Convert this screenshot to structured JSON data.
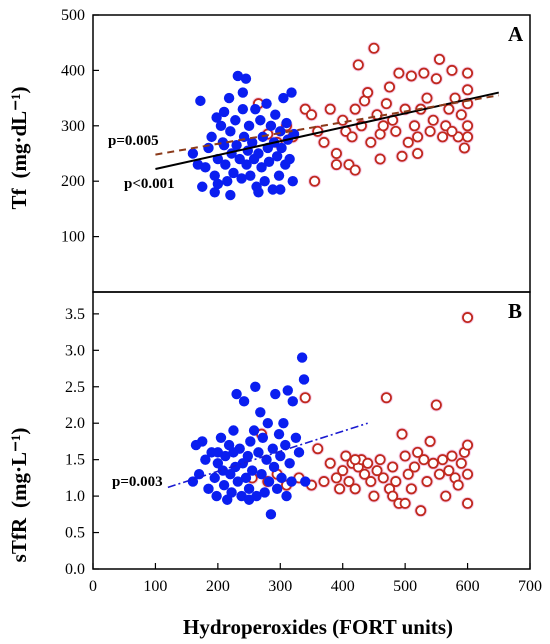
{
  "figure": {
    "xlabel": "Hydroperoxides (FORT units)",
    "xticks": [
      "0",
      "100",
      "200",
      "300",
      "400",
      "500",
      "600",
      "700"
    ]
  },
  "colors": {
    "blue_group": "#0a1ef0",
    "red_group": "#c0281e",
    "red_halo": "#f3c6e6",
    "black_line": "#000000",
    "dashed_line": "#8b3a1a",
    "dashdot_line": "#1a1ad0"
  },
  "chart_data": [
    {
      "type": "scatter",
      "panel_label": "A",
      "ylabel_main": "Tf",
      "ylabel_unit": "(mg·dL⁻¹)",
      "xlim": [
        0,
        700
      ],
      "ylim": [
        0,
        500
      ],
      "yticks": [
        "100",
        "200",
        "300",
        "400",
        "500"
      ],
      "grid": false,
      "annotations": [
        "p=0.005",
        "p<0.001"
      ],
      "regression_lines": [
        {
          "style": "solid",
          "color": "black",
          "x": [
            100,
            650
          ],
          "y": [
            222,
            360
          ]
        },
        {
          "style": "dashed",
          "color": "dark-red",
          "x": [
            100,
            650
          ],
          "y": [
            248,
            355
          ]
        }
      ],
      "series": [
        {
          "marker": "filled-circle",
          "color": "blue",
          "points": [
            [
              160,
              250
            ],
            [
              168,
              230
            ],
            [
              172,
              345
            ],
            [
              175,
              190
            ],
            [
              180,
              225
            ],
            [
              185,
              260
            ],
            [
              190,
              280
            ],
            [
              195,
              210
            ],
            [
              198,
              315
            ],
            [
              200,
              240
            ],
            [
              200,
              195
            ],
            [
              205,
              300
            ],
            [
              208,
              270
            ],
            [
              210,
              325
            ],
            [
              212,
              230
            ],
            [
              215,
              200
            ],
            [
              218,
              350
            ],
            [
              220,
              290
            ],
            [
              222,
              250
            ],
            [
              225,
              215
            ],
            [
              228,
              310
            ],
            [
              230,
              265
            ],
            [
              232,
              390
            ],
            [
              235,
              240
            ],
            [
              238,
              205
            ],
            [
              240,
              330
            ],
            [
              242,
              280
            ],
            [
              245,
              385
            ],
            [
              246,
              230
            ],
            [
              248,
              255
            ],
            [
              250,
              300
            ],
            [
              252,
              210
            ],
            [
              255,
              270
            ],
            [
              258,
              240
            ],
            [
              260,
              330
            ],
            [
              262,
              190
            ],
            [
              265,
              250
            ],
            [
              268,
              310
            ],
            [
              270,
              225
            ],
            [
              272,
              280
            ],
            [
              275,
              200
            ],
            [
              278,
              340
            ],
            [
              280,
              260
            ],
            [
              282,
              235
            ],
            [
              285,
              300
            ],
            [
              288,
              185
            ],
            [
              290,
              270
            ],
            [
              292,
              320
            ],
            [
              295,
              245
            ],
            [
              298,
              210
            ],
            [
              300,
              290
            ],
            [
              302,
              260
            ],
            [
              305,
              350
            ],
            [
              308,
              230
            ],
            [
              310,
              305
            ],
            [
              312,
              275
            ],
            [
              315,
              240
            ],
            [
              318,
              360
            ],
            [
              320,
              200
            ],
            [
              322,
              285
            ],
            [
              220,
              175
            ],
            [
              195,
              180
            ],
            [
              265,
              180
            ],
            [
              240,
              360
            ],
            [
              210,
              265
            ],
            [
              300,
              185
            ]
          ]
        },
        {
          "marker": "open-circle",
          "color": "red",
          "points": [
            [
              265,
              340
            ],
            [
              280,
              285
            ],
            [
              295,
              270
            ],
            [
              310,
              300
            ],
            [
              320,
              280
            ],
            [
              340,
              330
            ],
            [
              350,
              320
            ],
            [
              355,
              200
            ],
            [
              360,
              290
            ],
            [
              370,
              270
            ],
            [
              380,
              330
            ],
            [
              390,
              250
            ],
            [
              400,
              310
            ],
            [
              405,
              290
            ],
            [
              410,
              230
            ],
            [
              415,
              280
            ],
            [
              420,
              330
            ],
            [
              425,
              410
            ],
            [
              430,
              300
            ],
            [
              435,
              345
            ],
            [
              440,
              360
            ],
            [
              445,
              270
            ],
            [
              450,
              440
            ],
            [
              455,
              320
            ],
            [
              460,
              285
            ],
            [
              465,
              300
            ],
            [
              470,
              340
            ],
            [
              475,
              370
            ],
            [
              480,
              310
            ],
            [
              485,
              290
            ],
            [
              490,
              395
            ],
            [
              495,
              245
            ],
            [
              500,
              330
            ],
            [
              505,
              270
            ],
            [
              510,
              390
            ],
            [
              515,
              300
            ],
            [
              520,
              280
            ],
            [
              525,
              330
            ],
            [
              530,
              395
            ],
            [
              535,
              350
            ],
            [
              540,
              290
            ],
            [
              545,
              310
            ],
            [
              550,
              385
            ],
            [
              555,
              420
            ],
            [
              560,
              280
            ],
            [
              565,
              300
            ],
            [
              570,
              330
            ],
            [
              575,
              400
            ],
            [
              580,
              350
            ],
            [
              585,
              280
            ],
            [
              590,
              320
            ],
            [
              595,
              260
            ],
            [
              600,
              395
            ],
            [
              600,
              365
            ],
            [
              600,
              340
            ],
            [
              600,
              300
            ],
            [
              600,
              280
            ],
            [
              420,
              220
            ],
            [
              460,
              240
            ],
            [
              520,
              250
            ],
            [
              390,
              230
            ],
            [
              575,
              290
            ]
          ]
        }
      ]
    },
    {
      "type": "scatter",
      "panel_label": "B",
      "ylabel_main": "sTfR",
      "ylabel_unit": "(mg·L⁻¹)",
      "xlim": [
        0,
        700
      ],
      "ylim": [
        0,
        3.8
      ],
      "yticks": [
        "0.0",
        "0.5",
        "1.0",
        "1.5",
        "2.0",
        "2.5",
        "3.0",
        "3.5"
      ],
      "grid": false,
      "annotations": [
        "p=0.003"
      ],
      "regression_lines": [
        {
          "style": "dashdot",
          "color": "blue",
          "x": [
            120,
            440
          ],
          "y": [
            1.12,
            2.0
          ]
        }
      ],
      "series": [
        {
          "marker": "filled-circle",
          "color": "blue",
          "points": [
            [
              160,
              1.2
            ],
            [
              165,
              1.7
            ],
            [
              170,
              1.3
            ],
            [
              175,
              1.75
            ],
            [
              180,
              1.5
            ],
            [
              185,
              1.1
            ],
            [
              190,
              1.6
            ],
            [
              195,
              1.25
            ],
            [
              198,
              1.0
            ],
            [
              200,
              1.45
            ],
            [
              205,
              1.8
            ],
            [
              208,
              1.35
            ],
            [
              210,
              1.15
            ],
            [
              212,
              1.55
            ],
            [
              215,
              0.95
            ],
            [
              218,
              1.7
            ],
            [
              220,
              1.3
            ],
            [
              222,
              1.05
            ],
            [
              225,
              1.6
            ],
            [
              228,
              1.4
            ],
            [
              230,
              2.4
            ],
            [
              232,
              1.2
            ],
            [
              235,
              1.65
            ],
            [
              238,
              1.0
            ],
            [
              240,
              1.45
            ],
            [
              242,
              2.3
            ],
            [
              245,
              1.25
            ],
            [
              248,
              1.55
            ],
            [
              250,
              1.1
            ],
            [
              252,
              1.75
            ],
            [
              255,
              1.35
            ],
            [
              258,
              1.9
            ],
            [
              260,
              2.5
            ],
            [
              262,
              1.0
            ],
            [
              265,
              1.6
            ],
            [
              268,
              2.15
            ],
            [
              270,
              1.3
            ],
            [
              272,
              1.8
            ],
            [
              275,
              1.05
            ],
            [
              278,
              1.5
            ],
            [
              280,
              2.0
            ],
            [
              282,
              1.2
            ],
            [
              285,
              0.75
            ],
            [
              288,
              1.65
            ],
            [
              290,
              1.4
            ],
            [
              292,
              2.4
            ],
            [
              295,
              1.1
            ],
            [
              298,
              1.85
            ],
            [
              300,
              1.55
            ],
            [
              302,
              1.25
            ],
            [
              305,
              2.0
            ],
            [
              308,
              1.7
            ],
            [
              310,
              1.0
            ],
            [
              312,
              2.45
            ],
            [
              315,
              1.45
            ],
            [
              318,
              1.2
            ],
            [
              320,
              2.3
            ],
            [
              325,
              1.8
            ],
            [
              330,
              1.6
            ],
            [
              335,
              2.9
            ],
            [
              338,
              2.6
            ],
            [
              340,
              1.2
            ],
            [
              200,
              1.6
            ],
            [
              225,
              1.9
            ],
            [
              250,
              0.95
            ]
          ]
        },
        {
          "marker": "open-circle",
          "color": "red",
          "points": [
            [
              255,
              1.25
            ],
            [
              270,
              1.85
            ],
            [
              280,
              1.2
            ],
            [
              295,
              1.3
            ],
            [
              310,
              1.15
            ],
            [
              330,
              1.25
            ],
            [
              340,
              2.35
            ],
            [
              350,
              1.15
            ],
            [
              360,
              1.65
            ],
            [
              370,
              1.2
            ],
            [
              380,
              1.45
            ],
            [
              390,
              1.25
            ],
            [
              395,
              1.1
            ],
            [
              400,
              1.35
            ],
            [
              405,
              1.55
            ],
            [
              410,
              1.2
            ],
            [
              415,
              1.45
            ],
            [
              420,
              1.1
            ],
            [
              425,
              1.4
            ],
            [
              430,
              1.5
            ],
            [
              435,
              1.3
            ],
            [
              440,
              1.45
            ],
            [
              445,
              1.2
            ],
            [
              450,
              1.0
            ],
            [
              455,
              1.35
            ],
            [
              460,
              1.5
            ],
            [
              465,
              1.25
            ],
            [
              470,
              2.35
            ],
            [
              475,
              1.1
            ],
            [
              480,
              1.4
            ],
            [
              485,
              1.2
            ],
            [
              490,
              0.9
            ],
            [
              495,
              1.85
            ],
            [
              500,
              1.55
            ],
            [
              505,
              1.3
            ],
            [
              510,
              1.1
            ],
            [
              515,
              1.4
            ],
            [
              520,
              1.6
            ],
            [
              525,
              0.8
            ],
            [
              530,
              1.5
            ],
            [
              535,
              1.2
            ],
            [
              540,
              1.75
            ],
            [
              545,
              1.45
            ],
            [
              550,
              2.25
            ],
            [
              555,
              1.3
            ],
            [
              560,
              1.5
            ],
            [
              565,
              1.0
            ],
            [
              570,
              1.35
            ],
            [
              575,
              1.55
            ],
            [
              580,
              1.25
            ],
            [
              585,
              1.15
            ],
            [
              590,
              1.45
            ],
            [
              595,
              1.6
            ],
            [
              600,
              3.45
            ],
            [
              600,
              0.9
            ],
            [
              600,
              1.3
            ],
            [
              600,
              1.7
            ],
            [
              500,
              0.9
            ],
            [
              480,
              1.0
            ],
            [
              420,
              1.5
            ]
          ]
        }
      ]
    }
  ]
}
